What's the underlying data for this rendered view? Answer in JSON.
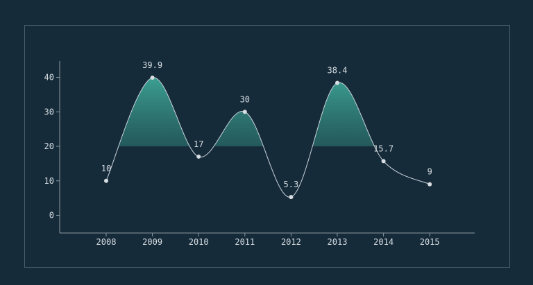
{
  "chart_data": {
    "type": "line",
    "title": "",
    "xlabel": "",
    "ylabel": "",
    "categories": [
      "2008",
      "2009",
      "2010",
      "2011",
      "2012",
      "2013",
      "2014",
      "2015"
    ],
    "values": [
      10,
      39.9,
      17,
      30,
      5.3,
      38.4,
      15.7,
      9
    ],
    "data_labels": [
      "10",
      "39.9",
      "17",
      "30",
      "5.3",
      "38.4",
      "15.7",
      "9"
    ],
    "yticks": [
      0,
      10,
      20,
      30,
      40
    ],
    "ylim": [
      -5,
      45
    ],
    "grid": false,
    "smooth": true,
    "area_fill_above": 20,
    "colors": {
      "background": "#162b3a",
      "line": "#c9d3d9",
      "axis": "#8c989f",
      "point": "#d9dee2",
      "area_top": "#3da596",
      "area_bottom": "#1f4a4e",
      "frame": "#4e5f6b"
    }
  }
}
